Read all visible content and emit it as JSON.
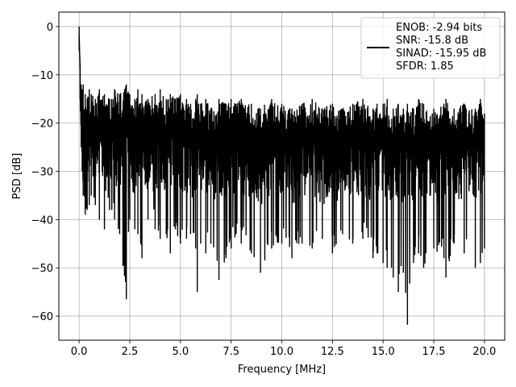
{
  "chart_data": {
    "type": "line",
    "xlabel": "Frequency [MHz]",
    "ylabel": "PSD [dB]",
    "xlim": [
      -1,
      21
    ],
    "ylim": [
      -65,
      3
    ],
    "xticks": [
      0.0,
      2.5,
      5.0,
      7.5,
      10.0,
      12.5,
      15.0,
      17.5,
      20.0
    ],
    "xtick_labels": [
      "0.0",
      "2.5",
      "5.0",
      "7.5",
      "10.0",
      "12.5",
      "15.0",
      "17.5",
      "20.0"
    ],
    "yticks": [
      0,
      -10,
      -20,
      -30,
      -40,
      -50,
      -60
    ],
    "ytick_labels": [
      "0",
      "−10",
      "−20",
      "−30",
      "−40",
      "−50",
      "−60"
    ],
    "grid": true,
    "legend_placement": "top-right",
    "line_color": "#000000",
    "series": [
      {
        "legend_lines": [
          "ENOB: -2.94 bits",
          "SNR: -15.8 dB",
          "SINAD: -15.95 dB",
          "SFDR: 1.85"
        ],
        "x": [
          0.0,
          0.05,
          0.1,
          0.15,
          0.2,
          0.3,
          0.4,
          0.5,
          0.6,
          0.8,
          1.0,
          1.25,
          1.5,
          1.75,
          2.0,
          2.33,
          2.5,
          2.75,
          2.9,
          3.1,
          3.4,
          3.75,
          4.0,
          4.3,
          4.5,
          4.75,
          5.0,
          5.3,
          5.5,
          5.75,
          5.83,
          6.0,
          6.25,
          6.5,
          6.9,
          7.25,
          7.5,
          7.75,
          8.0,
          8.5,
          8.95,
          9.5,
          10.0,
          10.5,
          11.0,
          11.5,
          12.0,
          12.5,
          13.0,
          13.5,
          14.0,
          14.5,
          14.7,
          15.0,
          15.2,
          15.5,
          15.75,
          16.0,
          16.2,
          16.5,
          16.75,
          17.0,
          17.5,
          18.0,
          18.1,
          18.5,
          19.0,
          19.55,
          19.8,
          20.0
        ],
        "upper": [
          0,
          -8,
          -12,
          -13,
          -12,
          -14,
          -15,
          -13,
          -14,
          -15,
          -13,
          -14,
          -15,
          -13,
          -14,
          -12,
          -14,
          -15,
          -13,
          -14,
          -15,
          -14,
          -13,
          -15,
          -14,
          -15,
          -14,
          -15,
          -16,
          -15,
          -14,
          -16,
          -15,
          -17,
          -15,
          -16,
          -15,
          -16,
          -15,
          -16,
          -17,
          -15,
          -16,
          -17,
          -16,
          -15,
          -17,
          -16,
          -17,
          -16,
          -15,
          -17,
          -16,
          -16,
          -15,
          -17,
          -16,
          -17,
          -16,
          -17,
          -15,
          -16,
          -17,
          -16,
          -15,
          -17,
          -16,
          -17,
          -15,
          -18
        ],
        "lower": [
          -5,
          -15,
          -25,
          -30,
          -35,
          -39,
          -38,
          -37,
          -35,
          -37,
          -40,
          -42,
          -38,
          -40,
          -43,
          -56.5,
          -40,
          -42,
          -43,
          -48,
          -40,
          -42,
          -44,
          -43,
          -47,
          -42,
          -45,
          -44,
          -43,
          -46,
          -55,
          -45,
          -47,
          -45,
          -52.5,
          -48,
          -46,
          -43,
          -45,
          -47,
          -51,
          -46,
          -45,
          -48,
          -45,
          -46,
          -44,
          -47,
          -43,
          -45,
          -44,
          -48,
          -47,
          -49,
          -50,
          -52,
          -55,
          -51,
          -61.8,
          -49,
          -47,
          -50,
          -46,
          -48,
          -52,
          -45,
          -47,
          -50,
          -49,
          -46
        ]
      }
    ]
  }
}
